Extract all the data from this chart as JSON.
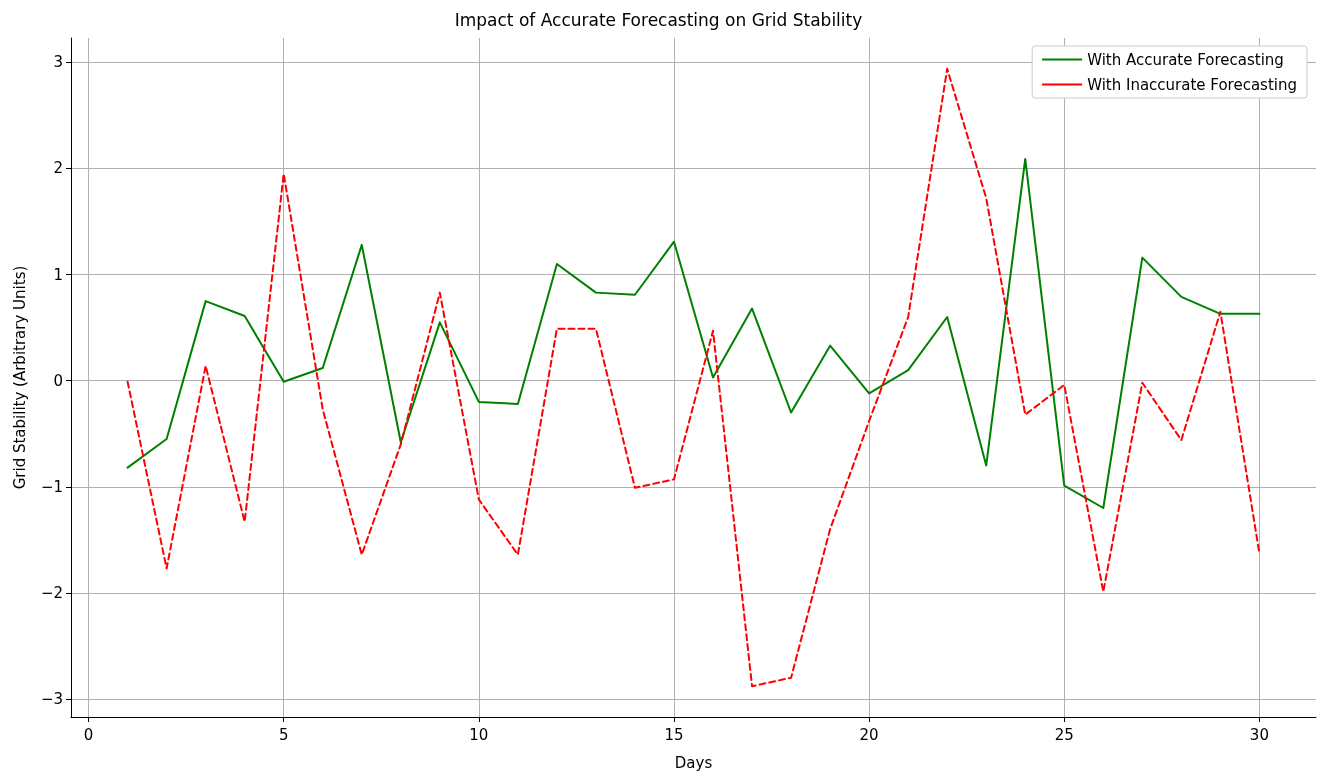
{
  "chart_data": {
    "type": "line",
    "title": "Impact of Accurate Forecasting on Grid Stability",
    "xlabel": "Days",
    "ylabel": "Grid Stability (Arbitrary Units)",
    "x": [
      1,
      2,
      3,
      4,
      5,
      6,
      7,
      8,
      9,
      10,
      11,
      12,
      13,
      14,
      15,
      16,
      17,
      18,
      19,
      20,
      21,
      22,
      23,
      24,
      25,
      26,
      27,
      28,
      29,
      30
    ],
    "series": [
      {
        "name": "With Accurate Forecasting",
        "color": "#008000",
        "line_style": "solid",
        "values": [
          -0.82,
          -0.55,
          0.75,
          0.61,
          -0.01,
          0.12,
          1.28,
          -0.58,
          0.55,
          -0.2,
          -0.22,
          1.1,
          0.83,
          0.81,
          1.31,
          0.03,
          0.68,
          -0.3,
          0.33,
          -0.12,
          0.1,
          0.6,
          -0.8,
          2.09,
          -0.99,
          -1.2,
          1.16,
          0.79,
          0.63,
          0.63
        ]
      },
      {
        "name": "With Inaccurate Forecasting",
        "color": "#ff0000",
        "line_style": "dashed",
        "values": [
          -0.01,
          -1.77,
          0.14,
          -1.33,
          1.95,
          -0.27,
          -1.64,
          -0.6,
          0.83,
          -1.12,
          -1.64,
          0.49,
          0.49,
          -1.01,
          -0.93,
          0.47,
          -2.88,
          -2.8,
          -1.4,
          -0.38,
          0.6,
          2.94,
          1.72,
          -0.32,
          -0.04,
          -1.99,
          -0.02,
          -0.56,
          0.65,
          -1.63
        ]
      }
    ],
    "xlim": [
      -0.45,
      31.45
    ],
    "xticks": [
      0,
      5,
      10,
      15,
      20,
      25,
      30
    ],
    "ylim": [
      -3.17,
      3.23
    ],
    "yticks": [
      -3,
      -2,
      -1,
      0,
      1,
      2,
      3
    ],
    "grid": true,
    "legend": "top right",
    "marker": "none"
  }
}
